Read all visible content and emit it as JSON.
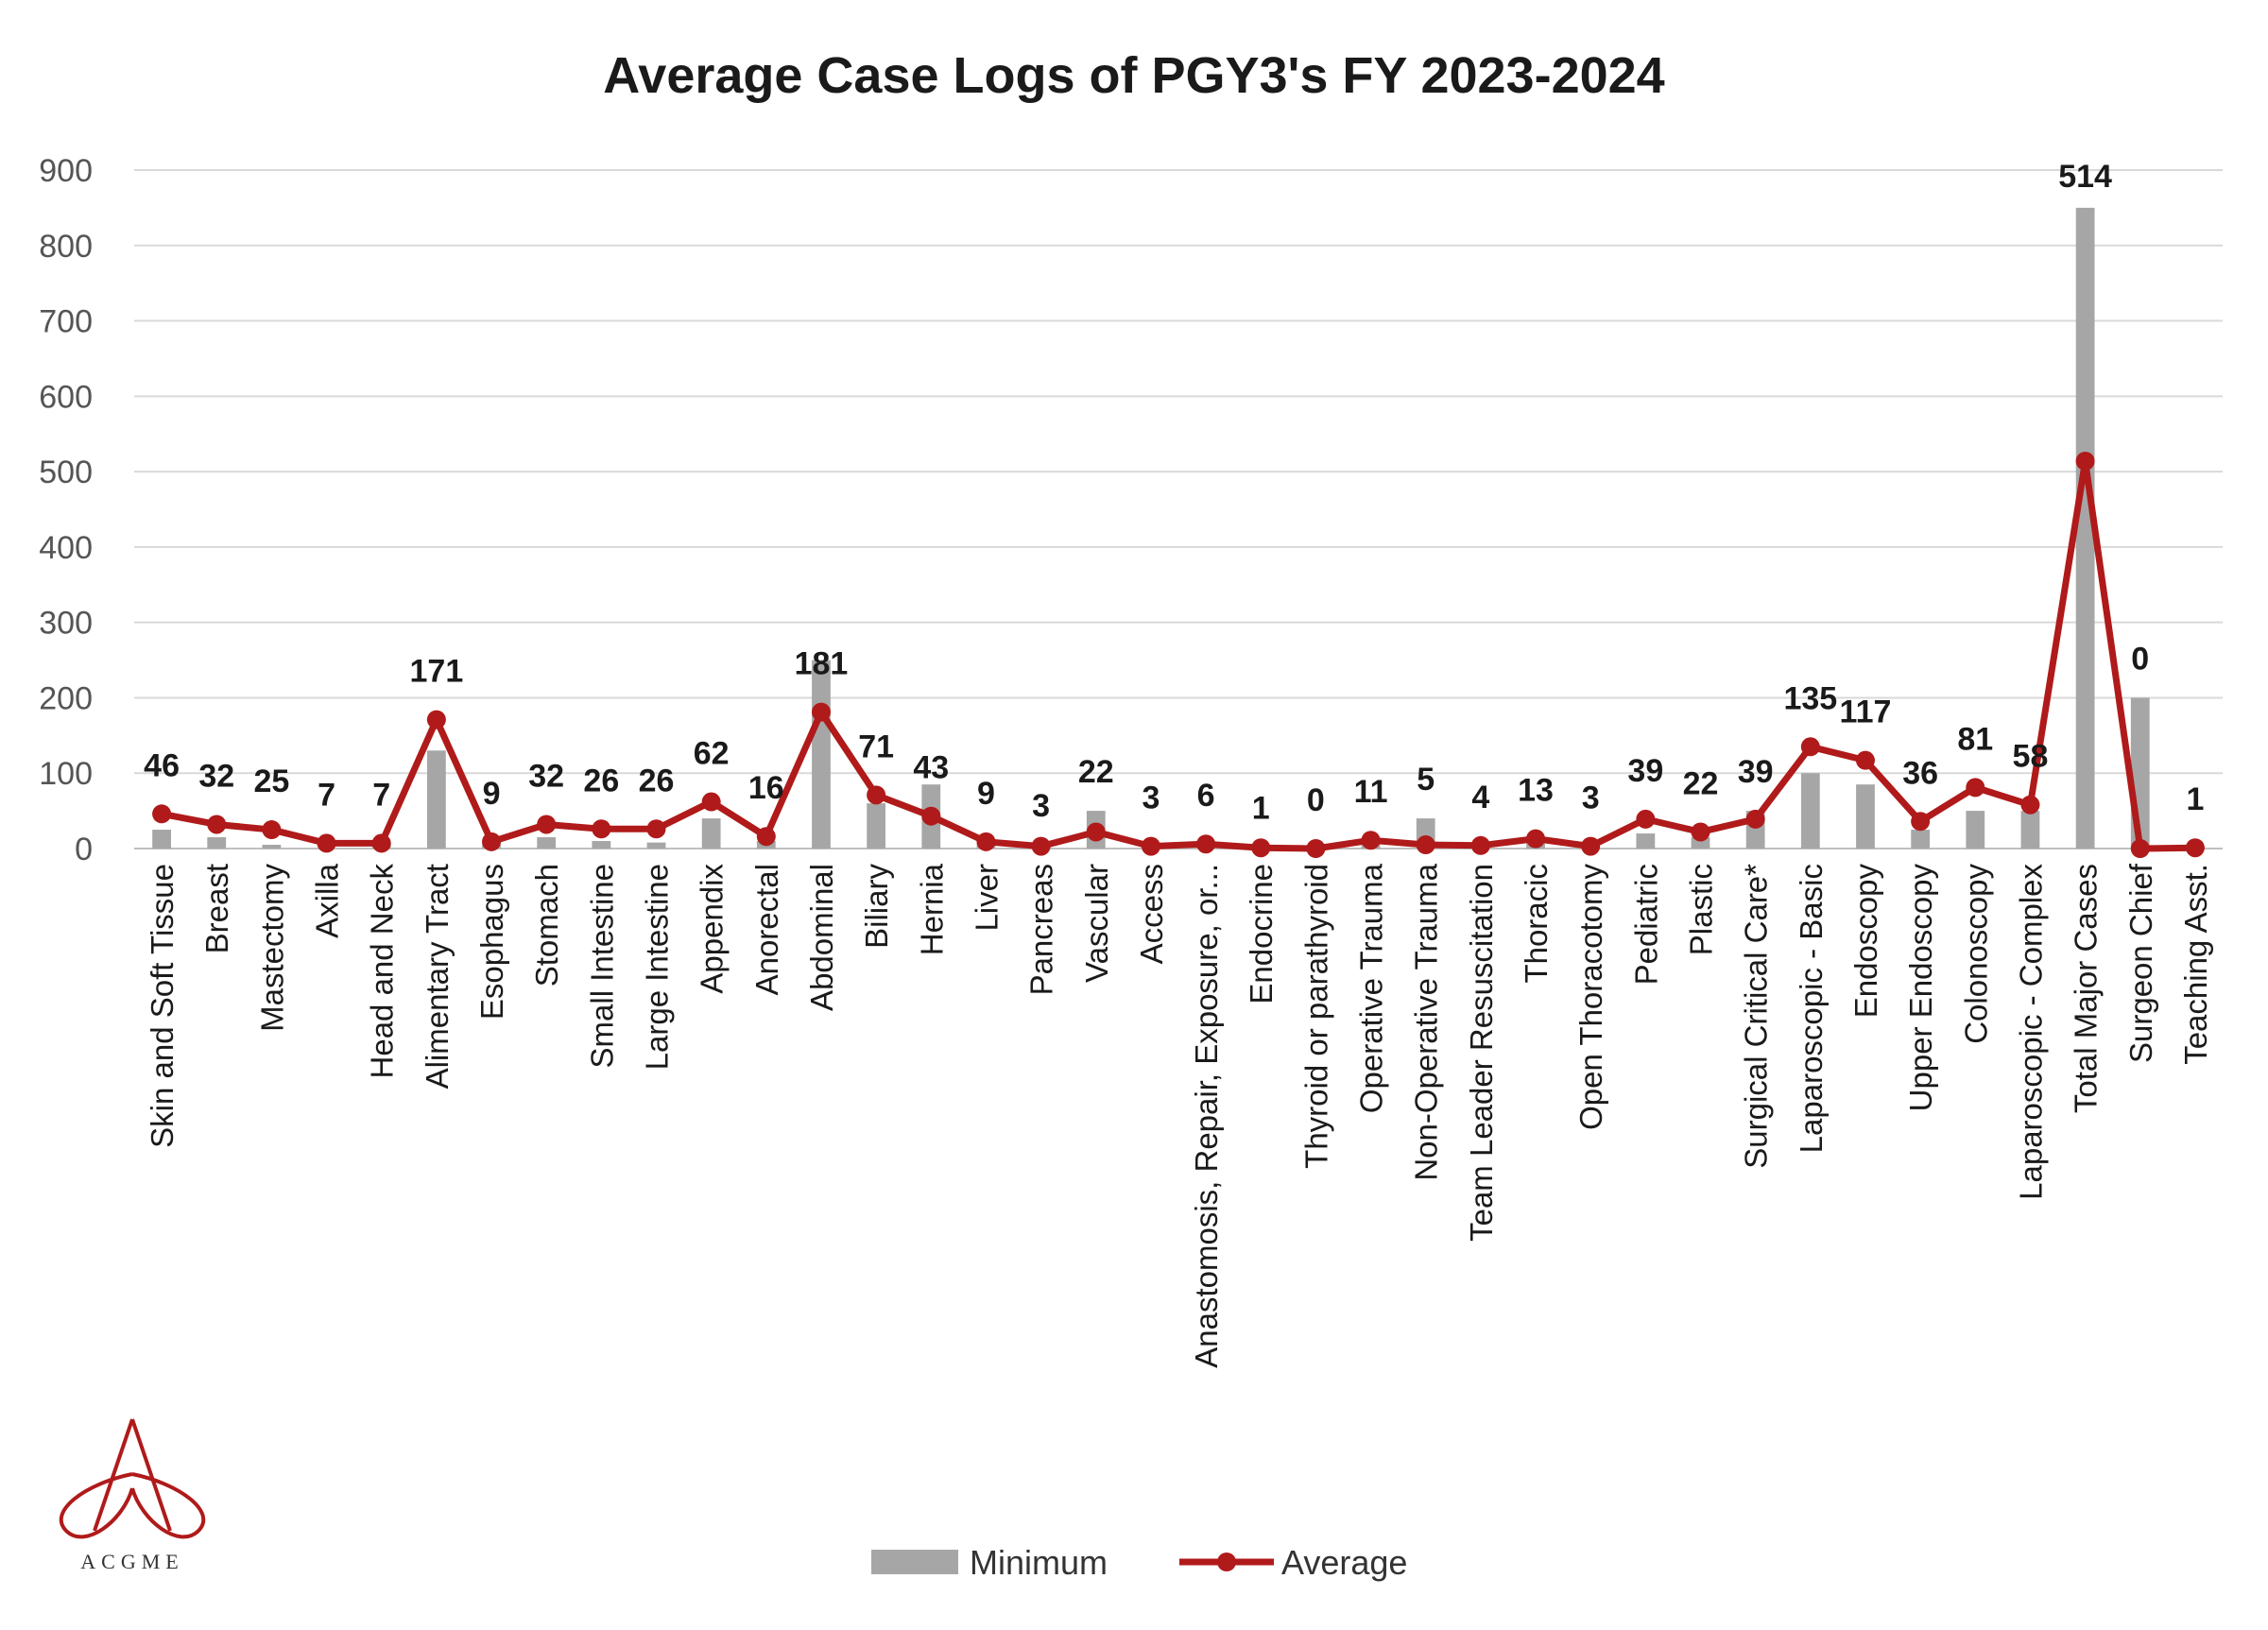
{
  "chart_data": {
    "type": "bar",
    "title": "Average Case Logs of PGY3's FY 2023-2024",
    "xlabel": "",
    "ylabel": "",
    "ylim": [
      0,
      900
    ],
    "yticks": [
      0,
      100,
      200,
      300,
      400,
      500,
      600,
      700,
      800,
      900
    ],
    "grid": true,
    "legend_position": "bottom",
    "categories": [
      "Skin and Soft Tissue",
      "Breast",
      "Mastectomy",
      "Axilla",
      "Head and Neck",
      "Alimentary Tract",
      "Esophagus",
      "Stomach",
      "Small Intestine",
      "Large Intestine",
      "Appendix",
      "Anorectal",
      "Abdominal",
      "Biliary",
      "Hernia",
      "Liver",
      "Pancreas",
      "Vascular",
      "Access",
      "Anastomosis, Repair, Exposure, or...",
      "Endocrine",
      "Thyroid or parathyroid",
      "Operative Trauma",
      "Non-Operative Trauma",
      "Team Leader Resuscitation",
      "Thoracic",
      "Open Thoracotomy",
      "Pediatric",
      "Plastic",
      "Surgical Critical Care*",
      "Laparoscopic - Basic",
      "Endoscopy",
      "Upper Endoscopy",
      "Colonoscopy",
      "Laparoscopic - Complex",
      "Total Major Cases",
      "Surgeon Chief",
      "Teaching Asst."
    ],
    "series": [
      {
        "name": "Minimum",
        "kind": "bar",
        "color": "#a6a6a6",
        "values": [
          25,
          15,
          5,
          0,
          5,
          130,
          5,
          15,
          10,
          8,
          40,
          10,
          250,
          60,
          85,
          5,
          5,
          50,
          3,
          5,
          2,
          0,
          10,
          40,
          2,
          8,
          0,
          20,
          15,
          50,
          100,
          85,
          25,
          50,
          50,
          850,
          200,
          0
        ]
      },
      {
        "name": "Average",
        "kind": "line",
        "color": "#b01a1a",
        "values": [
          46,
          32,
          25,
          7,
          7,
          171,
          9,
          32,
          26,
          26,
          62,
          16,
          181,
          71,
          43,
          9,
          3,
          22,
          3,
          6,
          1,
          0,
          11,
          5,
          4,
          13,
          3,
          39,
          22,
          39,
          135,
          117,
          36,
          81,
          58,
          514,
          0,
          1
        ]
      }
    ],
    "data_labels": [
      "46",
      "32",
      "25",
      "7",
      "7",
      "171",
      "9",
      "32",
      "26",
      "26",
      "62",
      "16",
      "181",
      "71",
      "43",
      "9",
      "3",
      "22",
      "3",
      "6",
      "1",
      "0",
      "11",
      "5",
      "4",
      "13",
      "3",
      "39",
      "22",
      "39",
      "135",
      "117",
      "36",
      "81",
      "58",
      "514",
      "0",
      "1"
    ],
    "colors": {
      "grid": "#d9d9d9",
      "axis": "#bfbfbf",
      "logo": "#b01a1a"
    }
  },
  "logo": {
    "text": "ACGME",
    "icon": "acgme-logo"
  }
}
